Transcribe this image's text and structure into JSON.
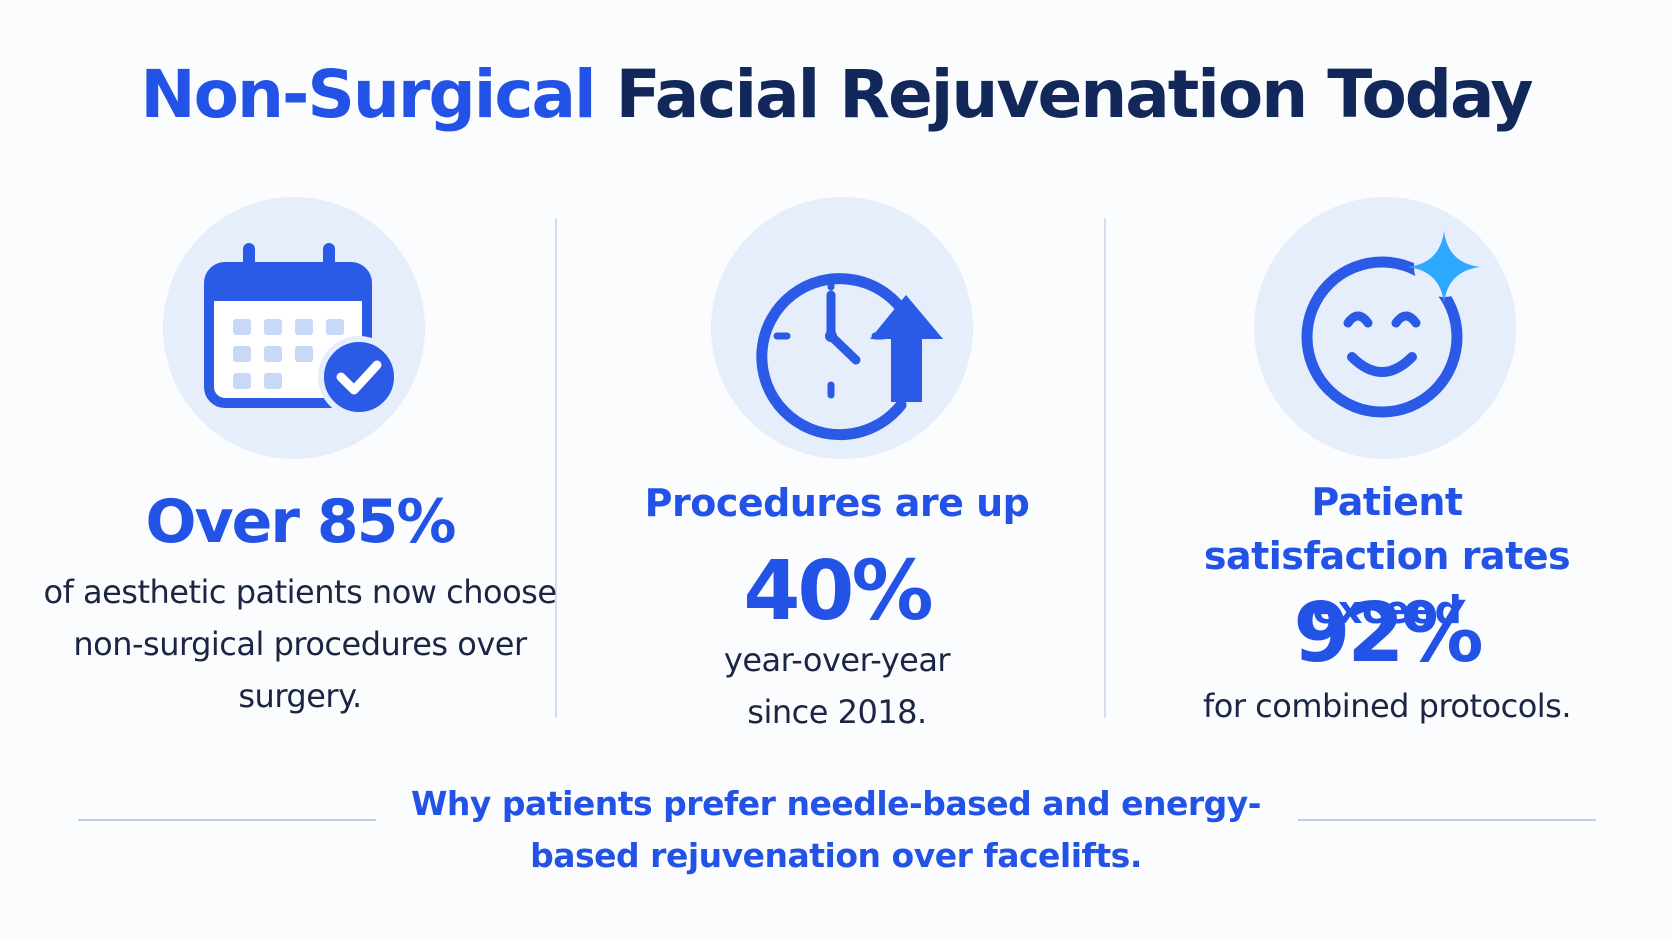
{
  "title": {
    "accent": "Non-Surgical",
    "rest": " Facial Rejuvenation Today"
  },
  "stats": [
    {
      "icon": "calendar-check-icon",
      "headline": "Over 85%",
      "body": "of aesthetic patients now choose non-surgical procedures over surgery."
    },
    {
      "icon": "clock-arrow-up-icon",
      "headline": "Procedures are up",
      "value": "40%",
      "body": "year-over-year since 2018."
    },
    {
      "icon": "smiley-sparkle-icon",
      "headline": "Patient satisfaction rates exceed",
      "value": "92%",
      "body": "for combined protocols."
    }
  ],
  "footer": "Why patients prefer needle-based and energy-based rejuvenation over facelifts.",
  "colors": {
    "accent": "#2353e6",
    "dark": "#13285a",
    "icon_bg": "#e6eefb",
    "sparkle": "#2ea8ff"
  }
}
